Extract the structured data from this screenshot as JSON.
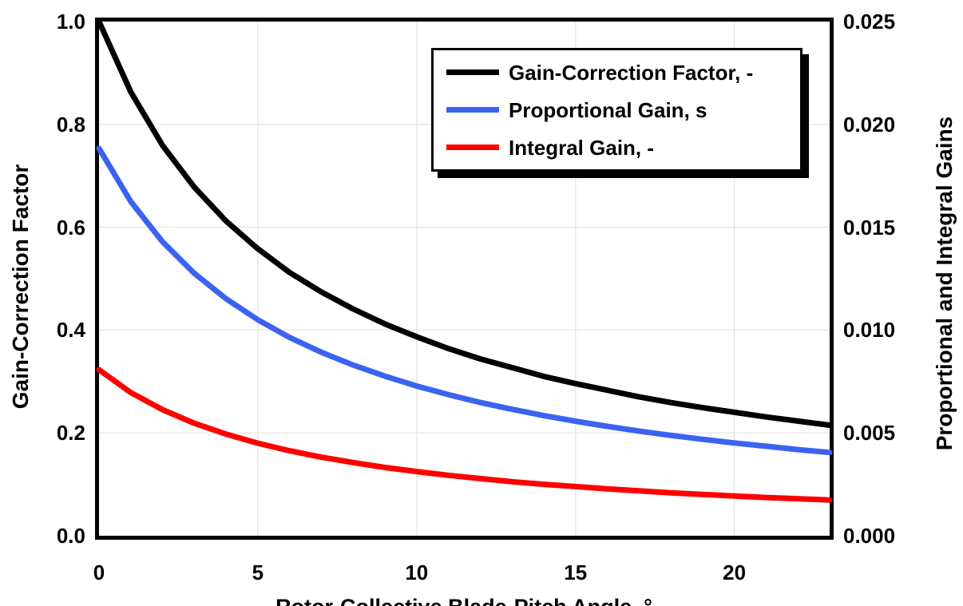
{
  "background": "#FFFFFF",
  "chart_data": {
    "type": "line",
    "title": "",
    "x_label": "Rotor-Collective Blade-Pitch Angle, °",
    "grid": true,
    "grid_color": "#E8E8E8",
    "legend_position": "top-right",
    "x_axis": {
      "range": [
        0,
        23
      ],
      "ticks": [
        0,
        5,
        10,
        15,
        20
      ],
      "tick_labels": [
        "0",
        "5",
        "10",
        "15",
        "20"
      ]
    },
    "y_left": {
      "label": "Gain-Correction Factor",
      "range": [
        0.0,
        1.0
      ],
      "ticks": [
        1.0,
        0.8,
        0.6,
        0.4,
        0.2,
        0.0
      ],
      "tick_labels": [
        "1.0",
        "0.8",
        "0.6",
        "0.4",
        "0.2",
        "0.0"
      ]
    },
    "y_right": {
      "label": "Proportional and Integral Gains",
      "range": [
        0.0,
        0.025
      ],
      "ticks": [
        0.025,
        0.02,
        0.015,
        0.01,
        0.005,
        0.0
      ],
      "tick_labels": [
        "0.025",
        "0.020",
        "0.015",
        "0.010",
        "0.005",
        "0.000"
      ]
    },
    "x": [
      0,
      1,
      2,
      3,
      4,
      5,
      6,
      7,
      8,
      9,
      10,
      11,
      12,
      13,
      14,
      15,
      16,
      17,
      18,
      19,
      20,
      21,
      22,
      23
    ],
    "series": [
      {
        "name": "Gain-Correction Factor, -",
        "color": "#000000",
        "axis": "left",
        "values": [
          1.0,
          0.863,
          0.759,
          0.678,
          0.612,
          0.558,
          0.512,
          0.474,
          0.441,
          0.412,
          0.387,
          0.364,
          0.344,
          0.327,
          0.31,
          0.296,
          0.283,
          0.27,
          0.259,
          0.249,
          0.24,
          0.231,
          0.223,
          0.215
        ]
      },
      {
        "name": "Proportional Gain, s",
        "color": "#3B63F0",
        "axis": "right",
        "values": [
          0.01883,
          0.01625,
          0.01429,
          0.01276,
          0.01152,
          0.0105,
          0.00964,
          0.00892,
          0.0083,
          0.00776,
          0.00728,
          0.00686,
          0.00648,
          0.00615,
          0.00584,
          0.00557,
          0.00532,
          0.00509,
          0.00488,
          0.00469,
          0.00451,
          0.00435,
          0.00419,
          0.00405
        ]
      },
      {
        "name": "Integral Gain, -",
        "color": "#FF0000",
        "axis": "right",
        "values": [
          0.00807,
          0.00696,
          0.00613,
          0.00547,
          0.00494,
          0.0045,
          0.00413,
          0.00382,
          0.00356,
          0.00332,
          0.00312,
          0.00294,
          0.00278,
          0.00263,
          0.0025,
          0.00239,
          0.00228,
          0.00218,
          0.00209,
          0.00201,
          0.00193,
          0.00186,
          0.0018,
          0.00174
        ]
      }
    ]
  }
}
